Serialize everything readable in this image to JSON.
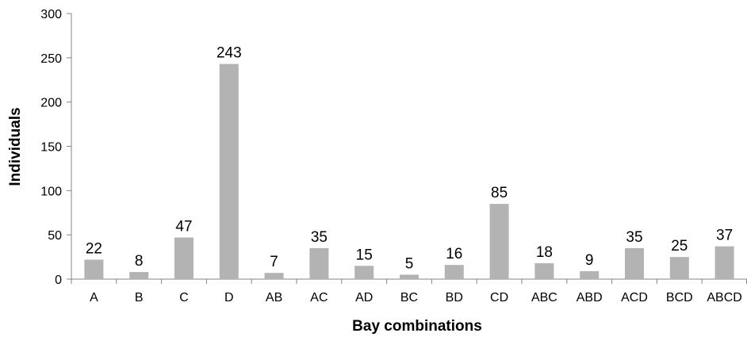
{
  "chart_data": {
    "type": "bar",
    "title": "",
    "xlabel": "Bay combinations",
    "ylabel": "Individuals",
    "categories": [
      "A",
      "B",
      "C",
      "D",
      "AB",
      "AC",
      "AD",
      "BC",
      "BD",
      "CD",
      "ABC",
      "ABD",
      "ACD",
      "BCD",
      "ABCD"
    ],
    "values": [
      22,
      8,
      47,
      243,
      7,
      35,
      15,
      5,
      16,
      85,
      18,
      9,
      35,
      25,
      37
    ],
    "ylim": [
      0,
      300
    ],
    "yticks": [
      0,
      50,
      100,
      150,
      200,
      250,
      300
    ],
    "grid": false,
    "legend": "none",
    "bar_color": "#b3b3b3",
    "axis_color": "#868686"
  }
}
